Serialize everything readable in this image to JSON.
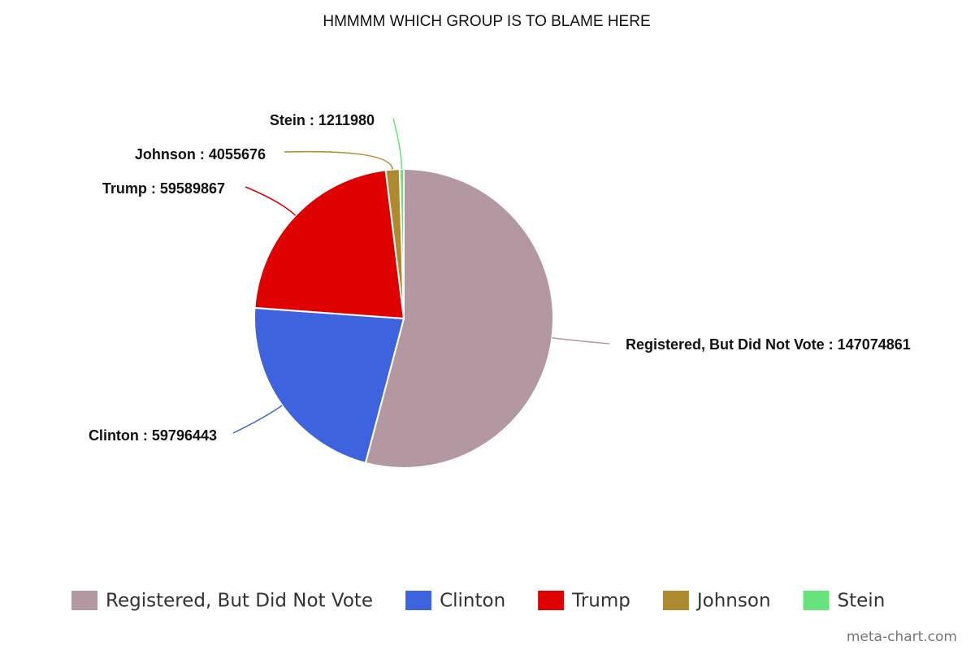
{
  "chart_data": {
    "type": "pie",
    "title": "HMMMM WHICH GROUP IS TO BLAME HERE",
    "categories": [
      "Registered, But Did Not Vote",
      "Clinton",
      "Trump",
      "Johnson",
      "Stein"
    ],
    "values": [
      147074861,
      59796443,
      59589867,
      4055676,
      1211980
    ],
    "value_labels": [
      "Registered, But Did Not Vote : 147074861",
      "Clinton : 59796443",
      "Trump : 59589867",
      "Johnson : 4055676",
      "Stein : 1211980"
    ],
    "colors": [
      "#b398a2",
      "#3e63df",
      "#df0000",
      "#ad8a2d",
      "#66e37a"
    ],
    "legend": "bottom",
    "credit": "meta-chart.com"
  }
}
